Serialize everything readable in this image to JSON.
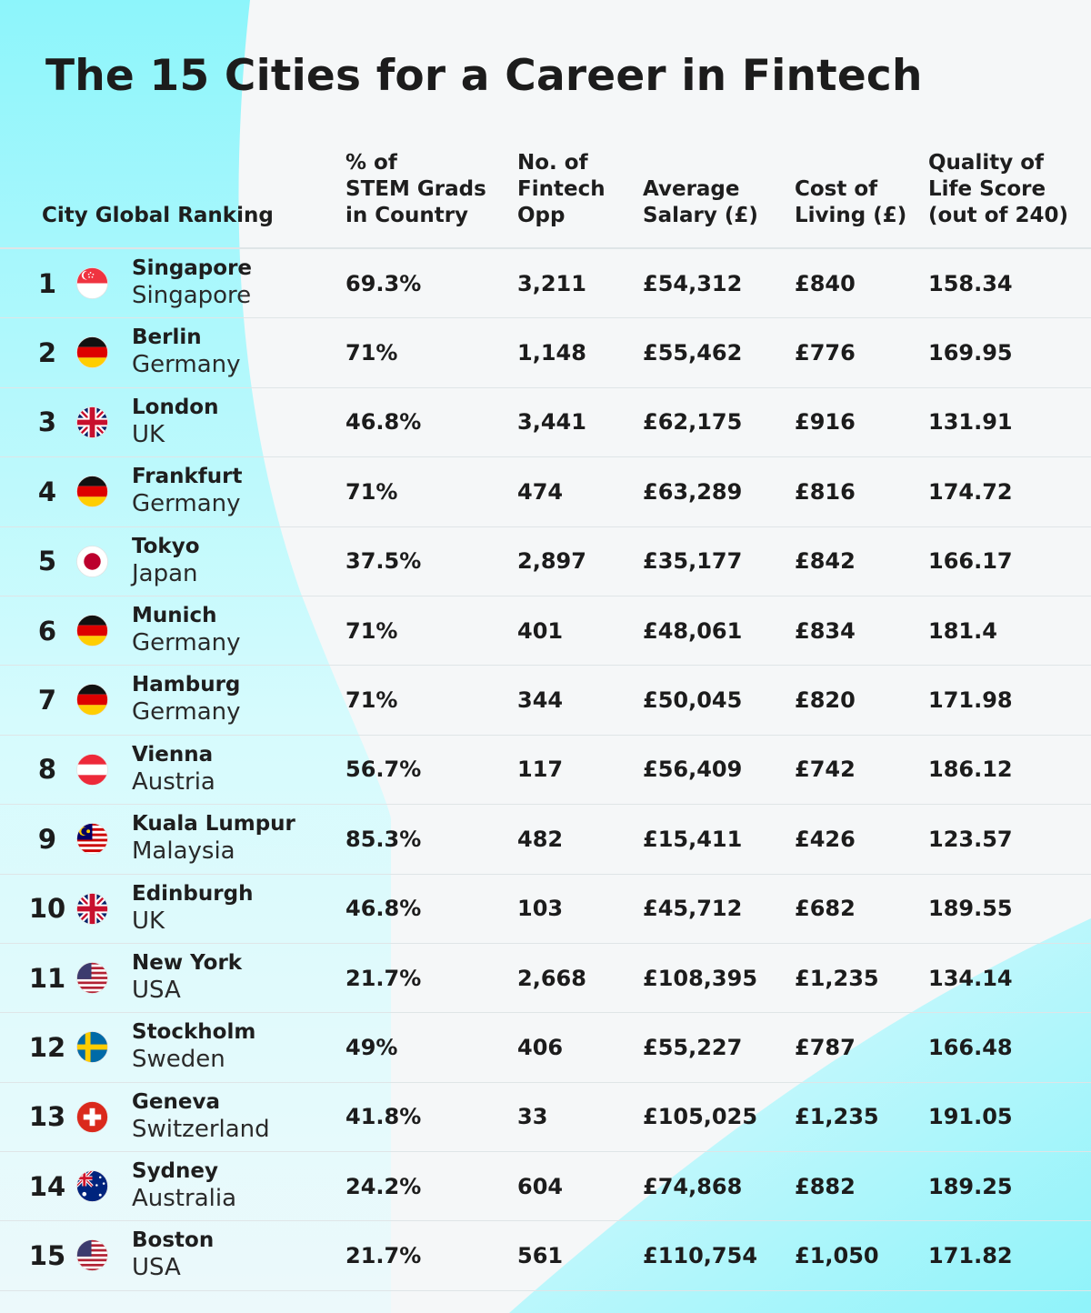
{
  "title": "The 15 Cities for a Career in Fintech",
  "headers": {
    "rank": "City Global Ranking",
    "stem": [
      "% of",
      "STEM Grads",
      "in Country"
    ],
    "fintech": [
      "No. of",
      "Fintech",
      "Opp"
    ],
    "salary": [
      "Average",
      "Salary (£)"
    ],
    "cost": [
      "Cost of",
      "Living (£)"
    ],
    "qol": [
      "Quality of",
      "Life Score",
      "(out of 240)"
    ]
  },
  "colors": {
    "accent_cyan": "#8ef5fa",
    "text": "#1c1c1c",
    "divider": "#dfe5e7"
  },
  "rows": [
    {
      "rank": "1",
      "city": "Singapore",
      "country": "Singapore",
      "flag": "singapore-flag",
      "stem": "69.3%",
      "fintech": "3,211",
      "salary": "£54,312",
      "cost": "£840",
      "qol": "158.34"
    },
    {
      "rank": "2",
      "city": "Berlin",
      "country": "Germany",
      "flag": "germany-flag",
      "stem": "71%",
      "fintech": "1,148",
      "salary": "£55,462",
      "cost": "£776",
      "qol": "169.95"
    },
    {
      "rank": "3",
      "city": "London",
      "country": "UK",
      "flag": "uk-flag",
      "stem": "46.8%",
      "fintech": "3,441",
      "salary": "£62,175",
      "cost": "£916",
      "qol": "131.91"
    },
    {
      "rank": "4",
      "city": "Frankfurt",
      "country": "Germany",
      "flag": "germany-flag",
      "stem": "71%",
      "fintech": "474",
      "salary": "£63,289",
      "cost": "£816",
      "qol": "174.72"
    },
    {
      "rank": "5",
      "city": "Tokyo",
      "country": "Japan",
      "flag": "japan-flag",
      "stem": "37.5%",
      "fintech": "2,897",
      "salary": "£35,177",
      "cost": "£842",
      "qol": "166.17"
    },
    {
      "rank": "6",
      "city": "Munich",
      "country": "Germany",
      "flag": "germany-flag",
      "stem": "71%",
      "fintech": "401",
      "salary": "£48,061",
      "cost": "£834",
      "qol": "181.4"
    },
    {
      "rank": "7",
      "city": "Hamburg",
      "country": "Germany",
      "flag": "germany-flag",
      "stem": "71%",
      "fintech": "344",
      "salary": "£50,045",
      "cost": "£820",
      "qol": "171.98"
    },
    {
      "rank": "8",
      "city": "Vienna",
      "country": "Austria",
      "flag": "austria-flag",
      "stem": "56.7%",
      "fintech": "117",
      "salary": "£56,409",
      "cost": "£742",
      "qol": "186.12"
    },
    {
      "rank": "9",
      "city": "Kuala Lumpur",
      "country": "Malaysia",
      "flag": "malaysia-flag",
      "stem": "85.3%",
      "fintech": "482",
      "salary": "£15,411",
      "cost": "£426",
      "qol": "123.57"
    },
    {
      "rank": "10",
      "city": "Edinburgh",
      "country": "UK",
      "flag": "uk-flag",
      "stem": "46.8%",
      "fintech": "103",
      "salary": "£45,712",
      "cost": "£682",
      "qol": "189.55"
    },
    {
      "rank": "11",
      "city": "New York",
      "country": "USA",
      "flag": "usa-flag",
      "stem": "21.7%",
      "fintech": "2,668",
      "salary": "£108,395",
      "cost": "£1,235",
      "qol": "134.14"
    },
    {
      "rank": "12",
      "city": "Stockholm",
      "country": "Sweden",
      "flag": "sweden-flag",
      "stem": "49%",
      "fintech": "406",
      "salary": "£55,227",
      "cost": "£787",
      "qol": "166.48"
    },
    {
      "rank": "13",
      "city": "Geneva",
      "country": "Switzerland",
      "flag": "switzerland-flag",
      "stem": "41.8%",
      "fintech": "33",
      "salary": "£105,025",
      "cost": "£1,235",
      "qol": "191.05"
    },
    {
      "rank": "14",
      "city": "Sydney",
      "country": "Australia",
      "flag": "australia-flag",
      "stem": "24.2%",
      "fintech": "604",
      "salary": "£74,868",
      "cost": "£882",
      "qol": "189.25"
    },
    {
      "rank": "15",
      "city": "Boston",
      "country": "USA",
      "flag": "usa-flag",
      "stem": "21.7%",
      "fintech": "561",
      "salary": "£110,754",
      "cost": "£1,050",
      "qol": "171.82"
    }
  ]
}
